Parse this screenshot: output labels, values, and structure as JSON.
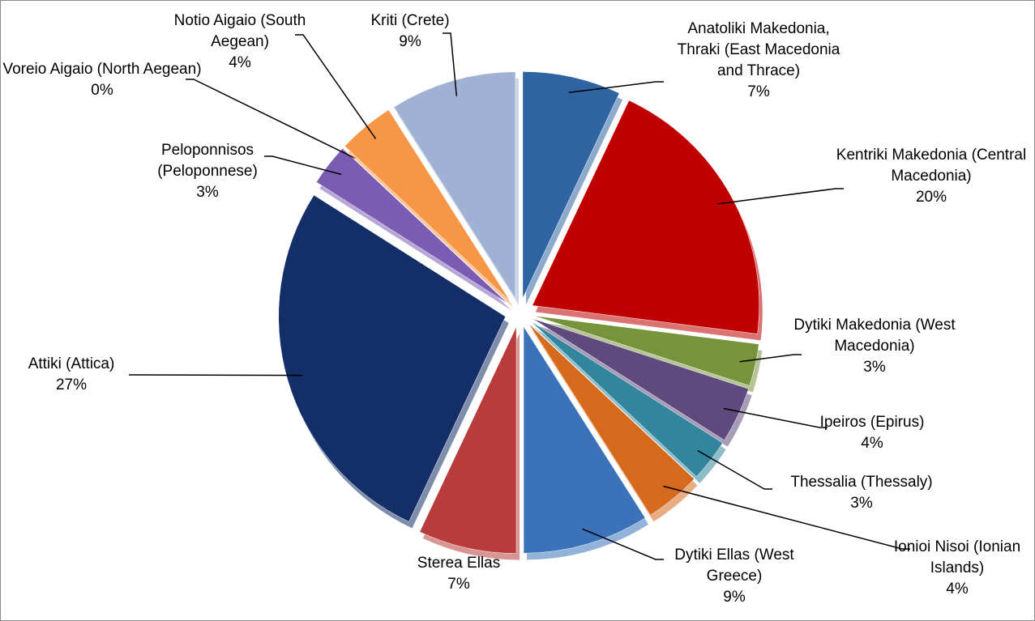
{
  "chart_data": {
    "type": "pie",
    "categories": [
      "Anatoliki Makedonia, Thraki (East Macedonia and Thrace)",
      "Kentriki Makedonia (Central Macedonia)",
      "Dytiki Makedonia (West Macedonia)",
      "Ipeiros (Epirus)",
      "Thessalia (Thessaly)",
      "Ionioi Nisoi (Ionian Islands)",
      "Dytiki Ellas (West Greece)",
      "Sterea Ellas",
      "Attiki (Attica)",
      "Peloponnisos (Peloponnese)",
      "Voreio Aigaio (North Aegean)",
      "Notio Aigaio (South Aegean)",
      "Kriti (Crete)"
    ],
    "values": [
      7,
      20,
      3,
      4,
      3,
      4,
      9,
      7,
      27,
      3,
      0,
      4,
      9
    ],
    "value_labels": [
      "7%",
      "20%",
      "3%",
      "4%",
      "3%",
      "4%",
      "9%",
      "7%",
      "27%",
      "3%",
      "0%",
      "4%",
      "9%"
    ],
    "colors": [
      "#2f64a3",
      "#c00000",
      "#77933c",
      "#5f4a7e",
      "#31859c",
      "#d5691c",
      "#3b72ba",
      "#b93c3c",
      "#142f68",
      "#7a5cb3",
      "#2c7b8a",
      "#f79646",
      "#9fb2d4"
    ]
  }
}
